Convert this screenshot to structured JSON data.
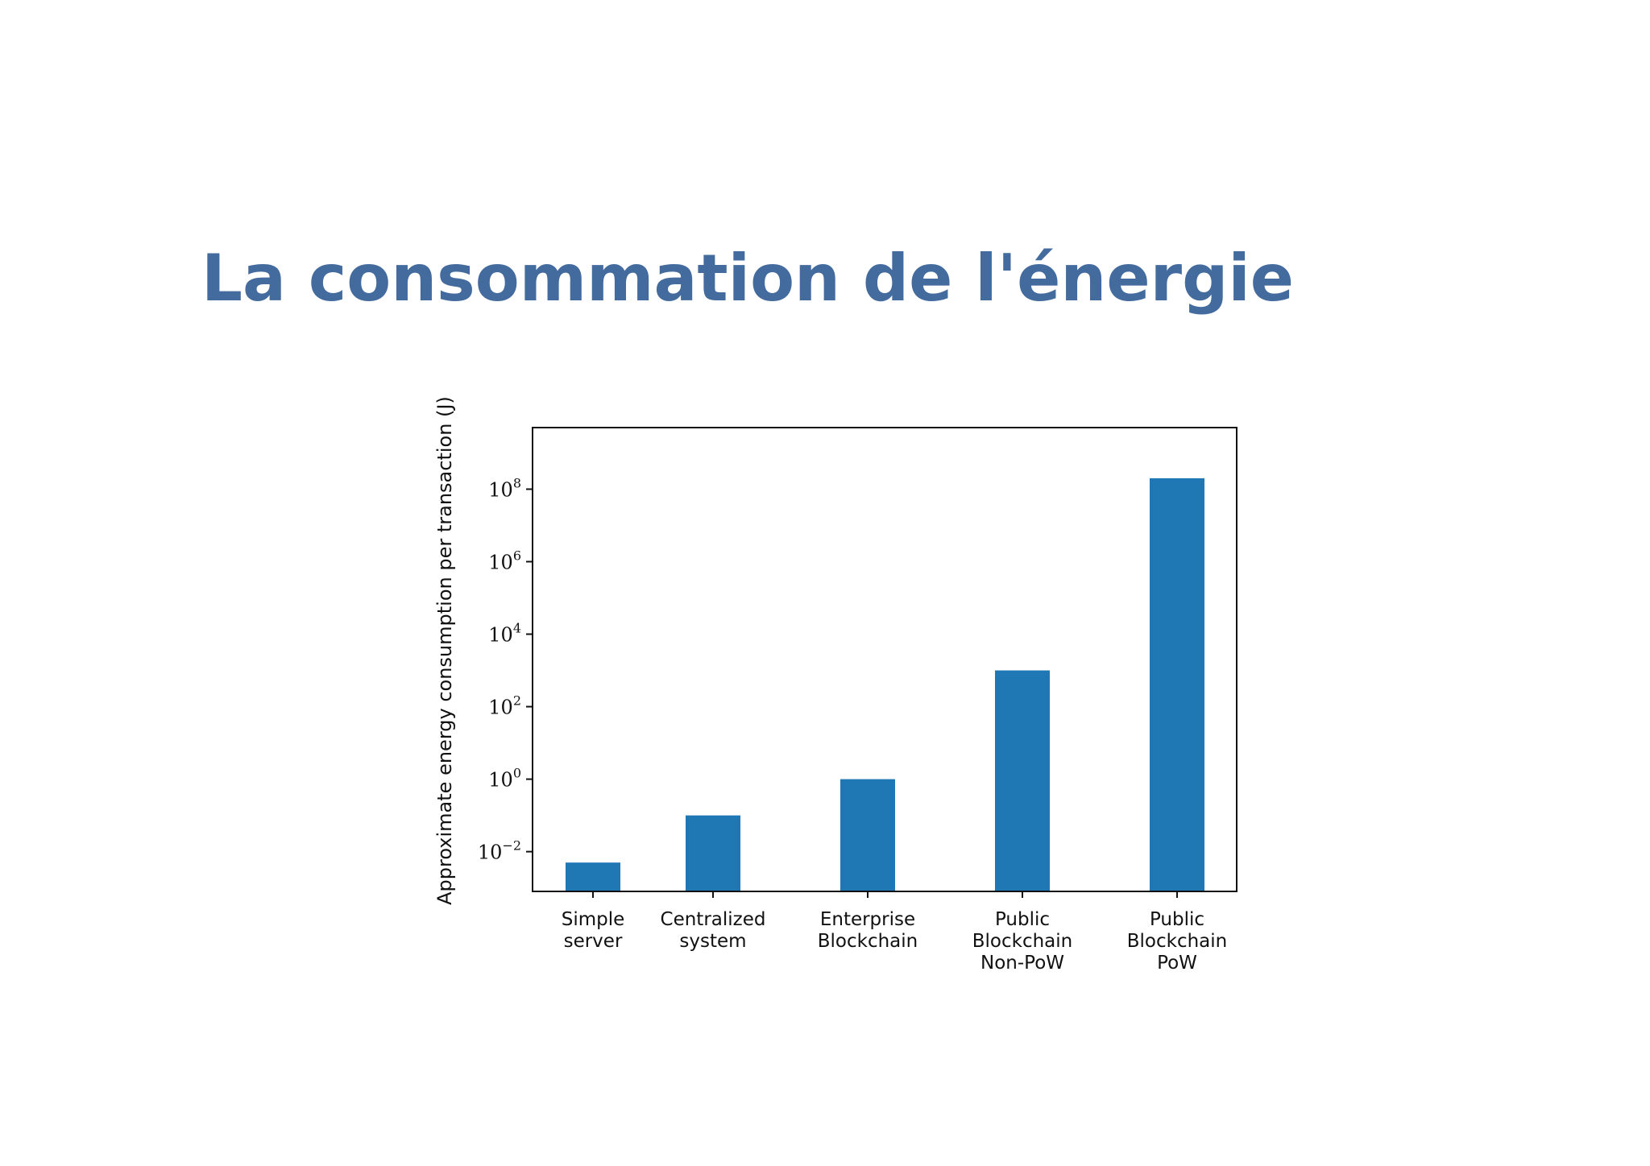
{
  "slide": {
    "title": "La consommation de l'énergie"
  },
  "chart_data": {
    "type": "bar",
    "scale": "log",
    "categories": [
      [
        "Simple",
        "server"
      ],
      [
        "Centralized",
        "system"
      ],
      [
        "Enterprise",
        "Blockchain"
      ],
      [
        "Public",
        "Blockchain",
        "Non-PoW"
      ],
      [
        "Public",
        "Blockchain",
        "PoW"
      ]
    ],
    "values": [
      0.005,
      0.1,
      1,
      1000,
      200000000
    ],
    "ylabel": "Approximate energy consumption per transaction (J)",
    "ylim": [
      0.0008,
      5000000000
    ],
    "yticks": [
      {
        "base": "10",
        "exp": "−2",
        "value": 0.01
      },
      {
        "base": "10",
        "exp": "0",
        "value": 1
      },
      {
        "base": "10",
        "exp": "2",
        "value": 100
      },
      {
        "base": "10",
        "exp": "4",
        "value": 10000
      },
      {
        "base": "10",
        "exp": "6",
        "value": 1000000
      },
      {
        "base": "10",
        "exp": "8",
        "value": 100000000
      }
    ],
    "bar_color": "#1f77b4",
    "grid": false,
    "legend": "none"
  }
}
